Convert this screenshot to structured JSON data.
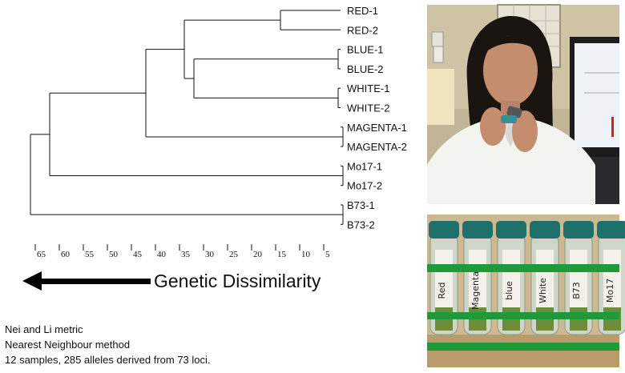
{
  "tree": {
    "leaves": [
      "RED-1",
      "RED-2",
      "BLUE-1",
      "BLUE-2",
      "WHITE-1",
      "WHITE-2",
      "MAGENTA-1",
      "MAGENTA-2",
      "Mo17-1",
      "Mo17-2",
      "B73-1",
      "B73-2"
    ],
    "joins": [
      {
        "id": "red",
        "children": [
          "RED-1",
          "RED-2"
        ],
        "height": 14
      },
      {
        "id": "blue",
        "children": [
          "BLUE-1",
          "BLUE-2"
        ],
        "height": 2
      },
      {
        "id": "white",
        "children": [
          "WHITE-1",
          "WHITE-2"
        ],
        "height": 2
      },
      {
        "id": "magenta",
        "children": [
          "MAGENTA-1",
          "MAGENTA-2"
        ],
        "height": 1
      },
      {
        "id": "mo17",
        "children": [
          "Mo17-1",
          "Mo17-2"
        ],
        "height": 1
      },
      {
        "id": "b73",
        "children": [
          "B73-1",
          "B73-2"
        ],
        "height": 1
      },
      {
        "id": "blue_white",
        "children": [
          "blue",
          "white"
        ],
        "height": 32
      },
      {
        "id": "red_bw",
        "children": [
          "red",
          "blue_white"
        ],
        "height": 34
      },
      {
        "id": "rbw_magenta",
        "children": [
          "red_bw",
          "magenta"
        ],
        "height": 42
      },
      {
        "id": "with_mo17",
        "children": [
          "rbw_magenta",
          "mo17"
        ],
        "height": 62
      },
      {
        "id": "root",
        "children": [
          "with_mo17",
          "b73"
        ],
        "height": 66
      }
    ],
    "axis_ticks": [
      "65",
      "60",
      "55",
      "50",
      "45",
      "40",
      "35",
      "30",
      "25",
      "20",
      "15",
      "10",
      "5"
    ]
  },
  "axis_title": "Genetic Dissimilarity",
  "notes": [
    "Nei and Li metric",
    "Nearest Neighbour method",
    "12 samples,  285 alleles derived from 73 loci."
  ],
  "photos": {
    "tube_labels": [
      "Red",
      "Magenta",
      "blue",
      "White",
      "B73",
      "Mo17"
    ]
  },
  "colors": {
    "tube_cap": "#1f6f6a",
    "rack": "#1e9a3a",
    "lab_coat": "#f3f3f0",
    "hair": "#1a1410"
  }
}
